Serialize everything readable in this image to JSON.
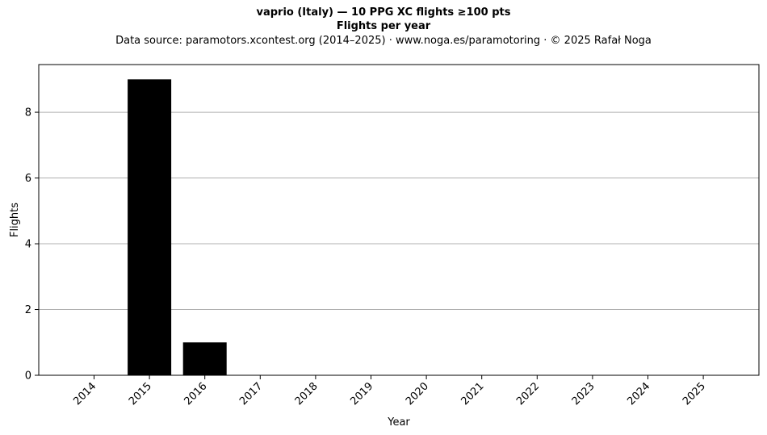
{
  "chart_data": {
    "type": "bar",
    "title": "vaprio (Italy)  —  10 PPG XC flights ≥100 pts",
    "subtitle": "Flights per year",
    "source_line": "Data source: paramotors.xcontest.org (2014–2025)  ·  www.noga.es/paramotoring  ·  © 2025 Rafał Noga",
    "xlabel": "Year",
    "ylabel": "Flights",
    "categories": [
      "2014",
      "2015",
      "2016",
      "2017",
      "2018",
      "2019",
      "2020",
      "2021",
      "2022",
      "2023",
      "2024",
      "2025"
    ],
    "values": [
      0,
      9,
      1,
      0,
      0,
      0,
      0,
      0,
      0,
      0,
      0,
      0
    ],
    "ylim": [
      0,
      9.45
    ],
    "yticks": [
      0,
      2,
      4,
      6,
      8
    ],
    "grid": "y",
    "bar_color": "#000000",
    "grid_color": "#b0b0b0"
  }
}
